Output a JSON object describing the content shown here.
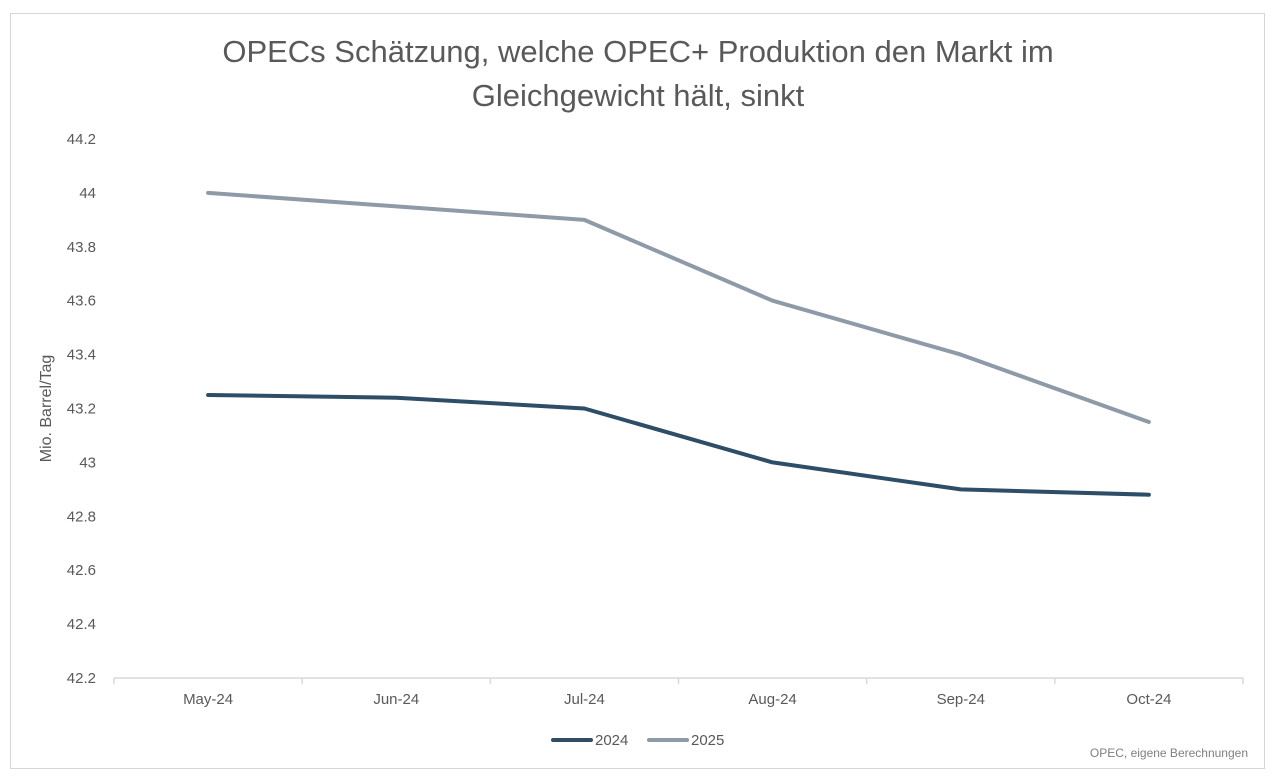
{
  "chart_data": {
    "type": "line",
    "title_lines": [
      "OPECs Schätzung, welche OPEC+ Produktion den Markt im",
      "Gleichgewicht hält, sinkt"
    ],
    "xlabel": "",
    "ylabel": "Mio. Barrel/Tag",
    "categories": [
      "May-24",
      "Jun-24",
      "Jul-24",
      "Aug-24",
      "Sep-24",
      "Oct-24"
    ],
    "y_ticks": [
      "42.2",
      "42.4",
      "42.6",
      "42.8",
      "43",
      "43.2",
      "43.4",
      "43.6",
      "43.8",
      "44",
      "44.2"
    ],
    "ylim": [
      42.2,
      44.2
    ],
    "grid": false,
    "legend_position": "bottom",
    "series": [
      {
        "name": "2024",
        "color": "#2e4d66",
        "values": [
          43.25,
          43.24,
          43.2,
          43.0,
          42.9,
          42.88
        ]
      },
      {
        "name": "2025",
        "color": "#8e9aa7",
        "values": [
          44.0,
          43.95,
          43.9,
          43.6,
          43.4,
          43.15
        ]
      }
    ],
    "source": "OPEC, eigene Berechnungen"
  }
}
